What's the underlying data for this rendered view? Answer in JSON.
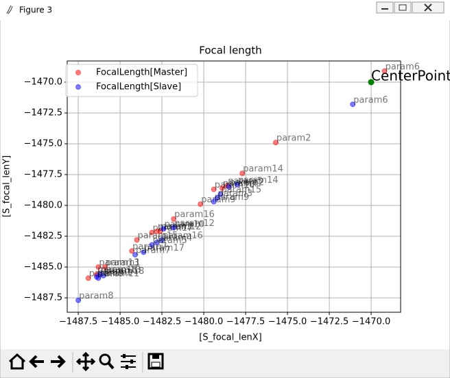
{
  "window": {
    "title": "Figure 3"
  },
  "chart_data": {
    "type": "scatter",
    "title": "Focal length",
    "xlabel": "[S_focal_lenX]",
    "ylabel": "[S_focal_lenY]",
    "xlim": [
      -1488.16,
      -1468.24
    ],
    "ylim": [
      -1488.67,
      -1468.28
    ],
    "xticks": [
      {
        "value": -1487.5,
        "label": "−1487.5"
      },
      {
        "value": -1485,
        "label": "−1485.0"
      },
      {
        "value": -1482.5,
        "label": "−1482.5"
      },
      {
        "value": -1480,
        "label": "−1480.0"
      },
      {
        "value": -1477.5,
        "label": "−1477.5"
      },
      {
        "value": -1475,
        "label": "−1475.0"
      },
      {
        "value": -1472.5,
        "label": "−1472.5"
      },
      {
        "value": -1470,
        "label": "−1470.0"
      }
    ],
    "yticks": [
      {
        "value": -1470,
        "label": "−1470.0"
      },
      {
        "value": -1472.5,
        "label": "−1472.5"
      },
      {
        "value": -1475,
        "label": "−1475.0"
      },
      {
        "value": -1477.5,
        "label": "−1477.5"
      },
      {
        "value": -1480,
        "label": "−1480.0"
      },
      {
        "value": -1482.5,
        "label": "−1482.5"
      },
      {
        "value": -1485,
        "label": "−1485.0"
      },
      {
        "value": -1487.5,
        "label": "−1487.5"
      }
    ],
    "grid": true,
    "legend": "upper left",
    "series": [
      {
        "name": "FocalLength[Master]",
        "color": "#ff0000",
        "labels": [
          "param6",
          "param2",
          "param14",
          "param5",
          "param10",
          "param4",
          "param9",
          "param16",
          "param12",
          "param17",
          "param3",
          "param15",
          "param7",
          "param13",
          "param1",
          "param18",
          "param8"
        ],
        "x": [
          -1469.2,
          -1475.7,
          -1477.7,
          -1478.6,
          -1479.4,
          -1478.9,
          -1480.2,
          -1481.8,
          -1482.6,
          -1483.1,
          -1482.8,
          -1484.0,
          -1484.3,
          -1486.3,
          -1485.9,
          -1486.4,
          -1486.9
        ],
        "values": [
          -1469.1,
          -1474.9,
          -1477.4,
          -1478.4,
          -1478.7,
          -1478.6,
          -1479.9,
          -1481.1,
          -1482.1,
          -1482.2,
          -1482.1,
          -1482.8,
          -1483.7,
          -1485.0,
          -1485.0,
          -1485.6,
          -1485.9
        ]
      },
      {
        "name": "FocalLength[Slave]",
        "color": "#0000ff",
        "labels": [
          "param6",
          "param14",
          "param2",
          "param15",
          "param3",
          "param9",
          "param12",
          "param10",
          "param16",
          "param4",
          "param5",
          "param17",
          "param7",
          "param13",
          "param18",
          "param11",
          "param8",
          "param1"
        ],
        "x": [
          -1471.1,
          -1478.0,
          -1478.5,
          -1479.0,
          -1479.2,
          -1479.4,
          -1481.8,
          -1482.4,
          -1482.5,
          -1482.8,
          -1483.1,
          -1483.6,
          -1484.1,
          -1486.2,
          -1486.0,
          -1486.3,
          -1487.5,
          -1486.4
        ],
        "values": [
          -1471.8,
          -1478.3,
          -1478.5,
          -1479.1,
          -1479.4,
          -1479.7,
          -1481.8,
          -1481.9,
          -1482.8,
          -1483.0,
          -1483.2,
          -1483.8,
          -1484.0,
          -1485.6,
          -1485.7,
          -1485.9,
          -1487.7,
          -1485.8
        ]
      }
    ],
    "center_point": {
      "label": "CenterPoint",
      "x": -1470,
      "y": -1470,
      "color": "#008000"
    }
  }
}
